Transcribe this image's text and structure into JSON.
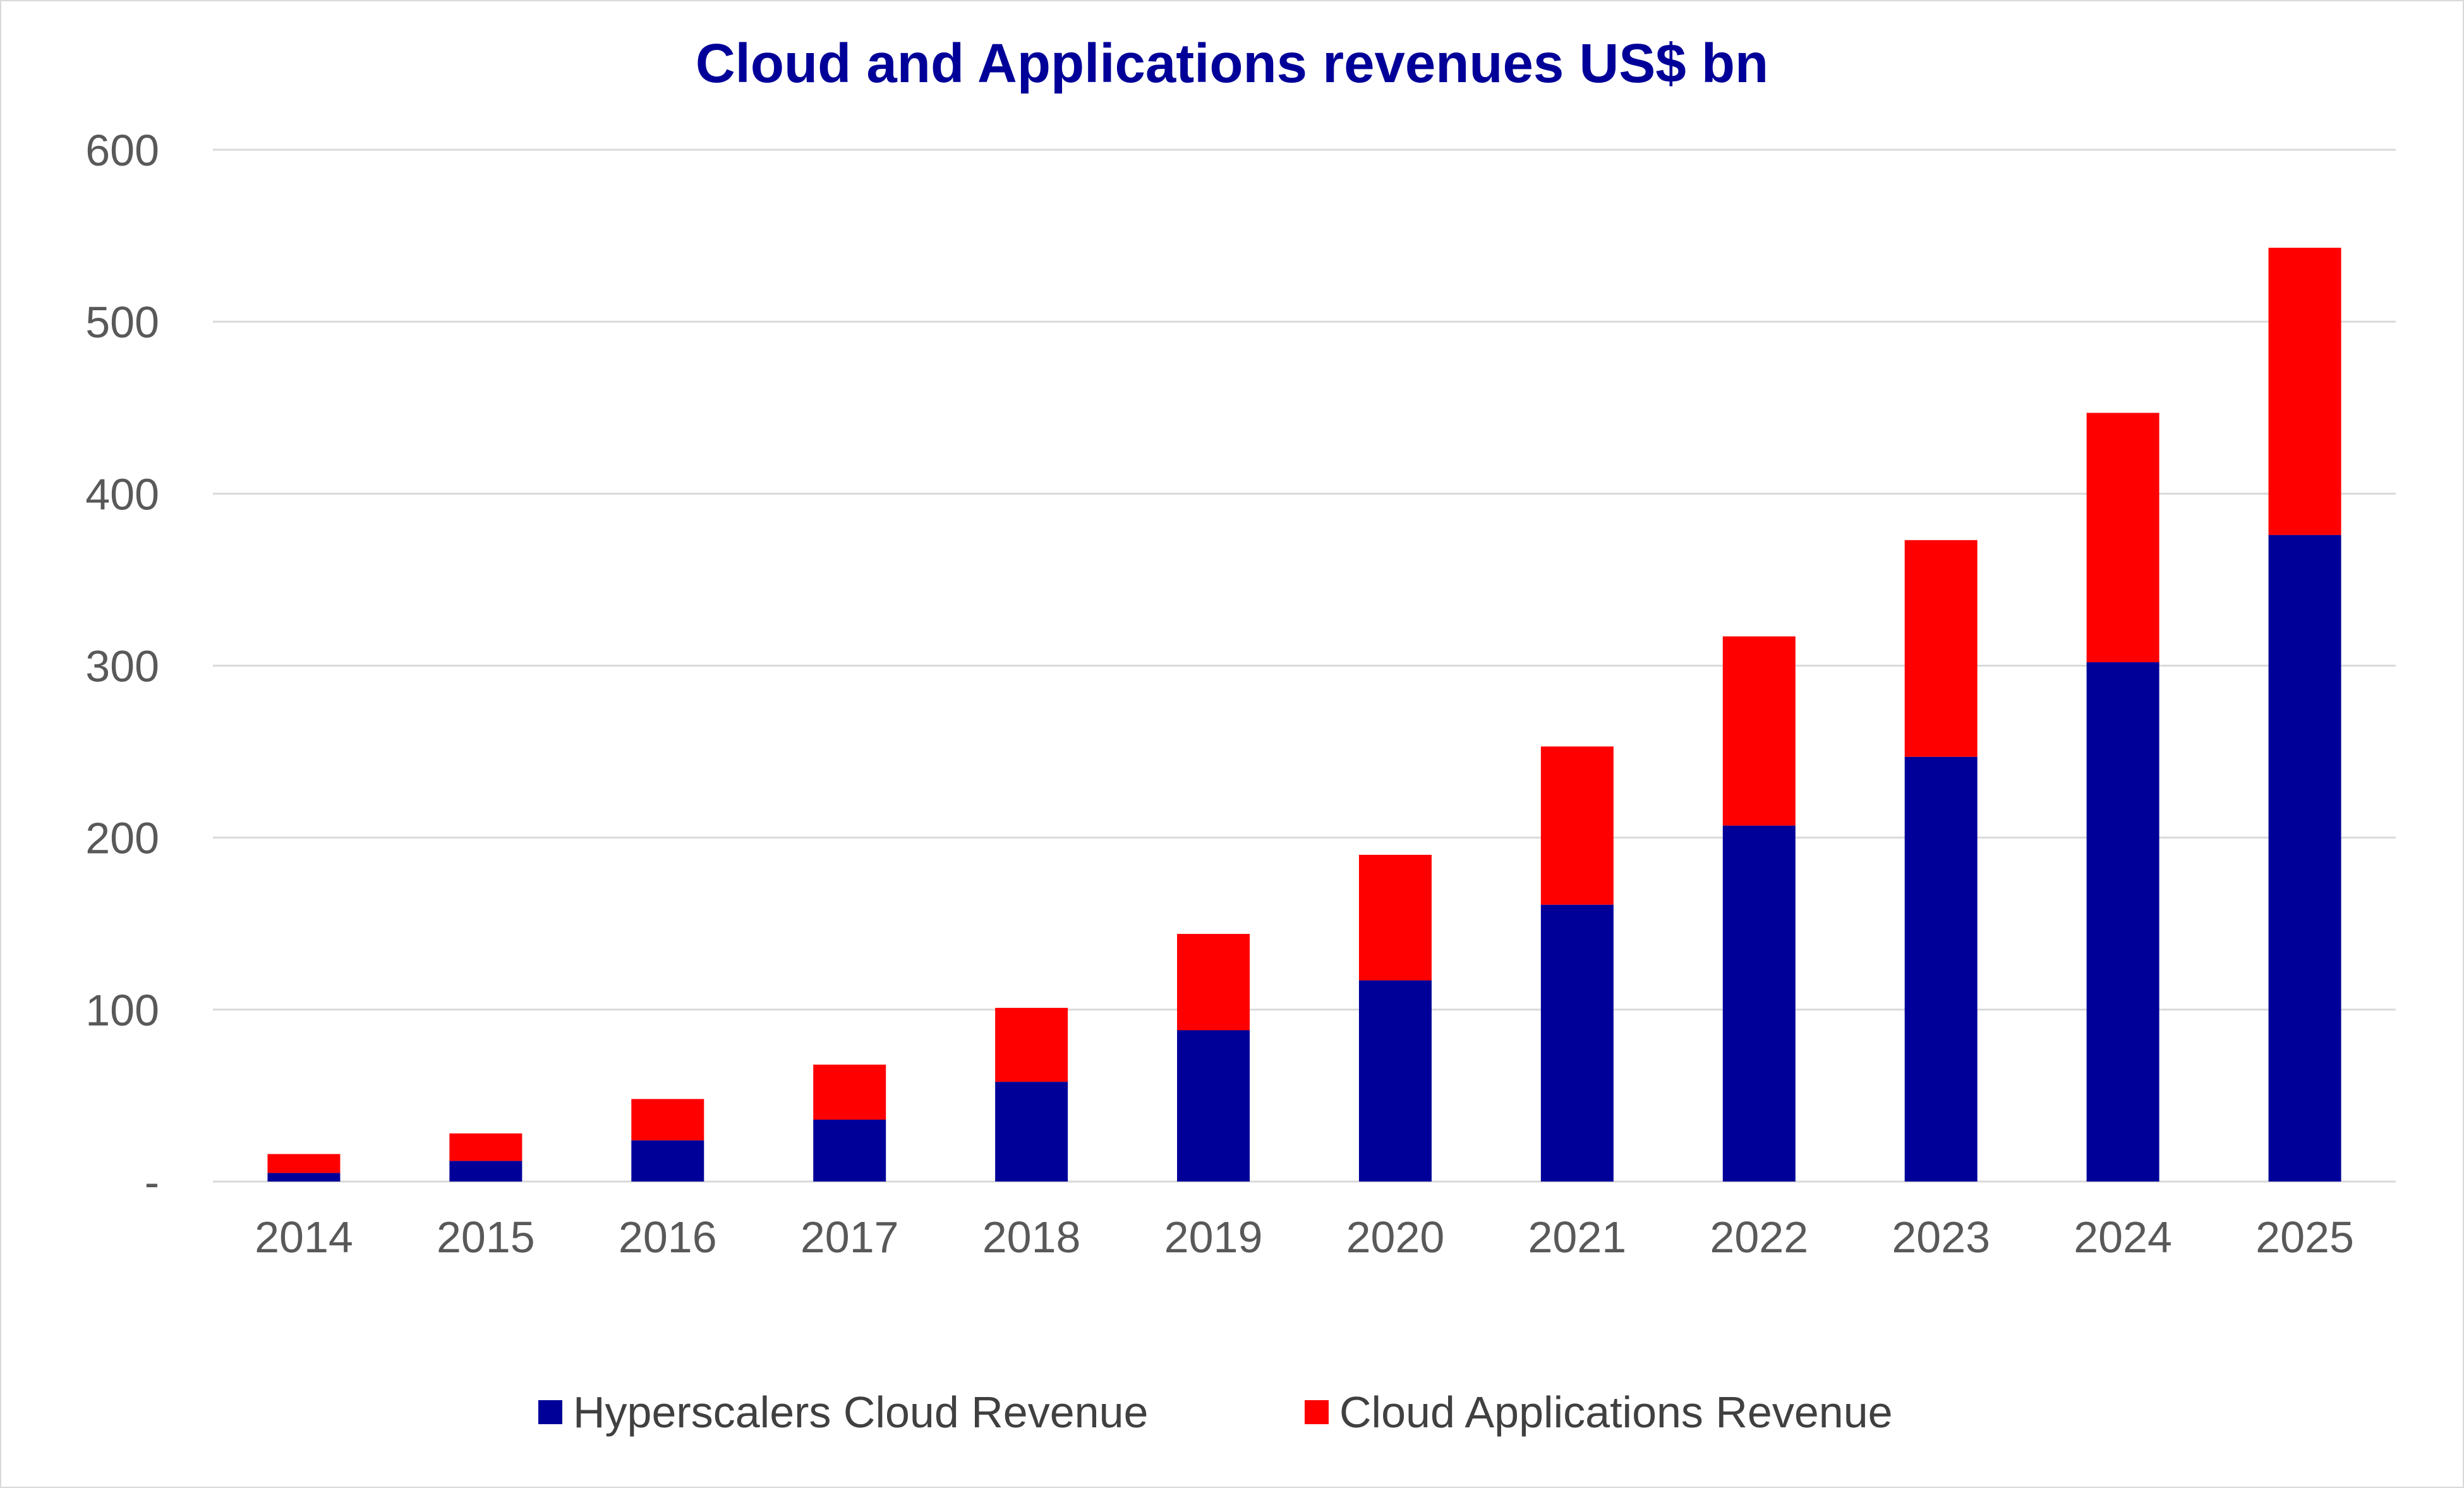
{
  "chart_data": {
    "type": "bar",
    "stacked": true,
    "title": "Cloud and Applications revenues US$ bn",
    "xlabel": "",
    "ylabel": "",
    "categories": [
      "2014",
      "2015",
      "2016",
      "2017",
      "2018",
      "2019",
      "2020",
      "2021",
      "2022",
      "2023",
      "2024",
      "2025"
    ],
    "series": [
      {
        "name": "Hyperscalers Cloud Revenue",
        "color": "#000099",
        "values": [
          5,
          12,
          24,
          36,
          58,
          88,
          117,
          161,
          207,
          247,
          302,
          376
        ]
      },
      {
        "name": "Cloud Applications Revenue",
        "color": "#ff0000",
        "values": [
          11,
          16,
          24,
          32,
          43,
          56,
          73,
          92,
          110,
          126,
          145,
          167
        ]
      }
    ],
    "ylim": [
      0,
      600
    ],
    "yticks": [
      {
        "value": 0,
        "label": "-"
      },
      {
        "value": 100,
        "label": "100"
      },
      {
        "value": 200,
        "label": "200"
      },
      {
        "value": 300,
        "label": "300"
      },
      {
        "value": 400,
        "label": "400"
      },
      {
        "value": 500,
        "label": "500"
      },
      {
        "value": 600,
        "label": "600"
      }
    ],
    "grid": true,
    "legend_position": "bottom"
  }
}
